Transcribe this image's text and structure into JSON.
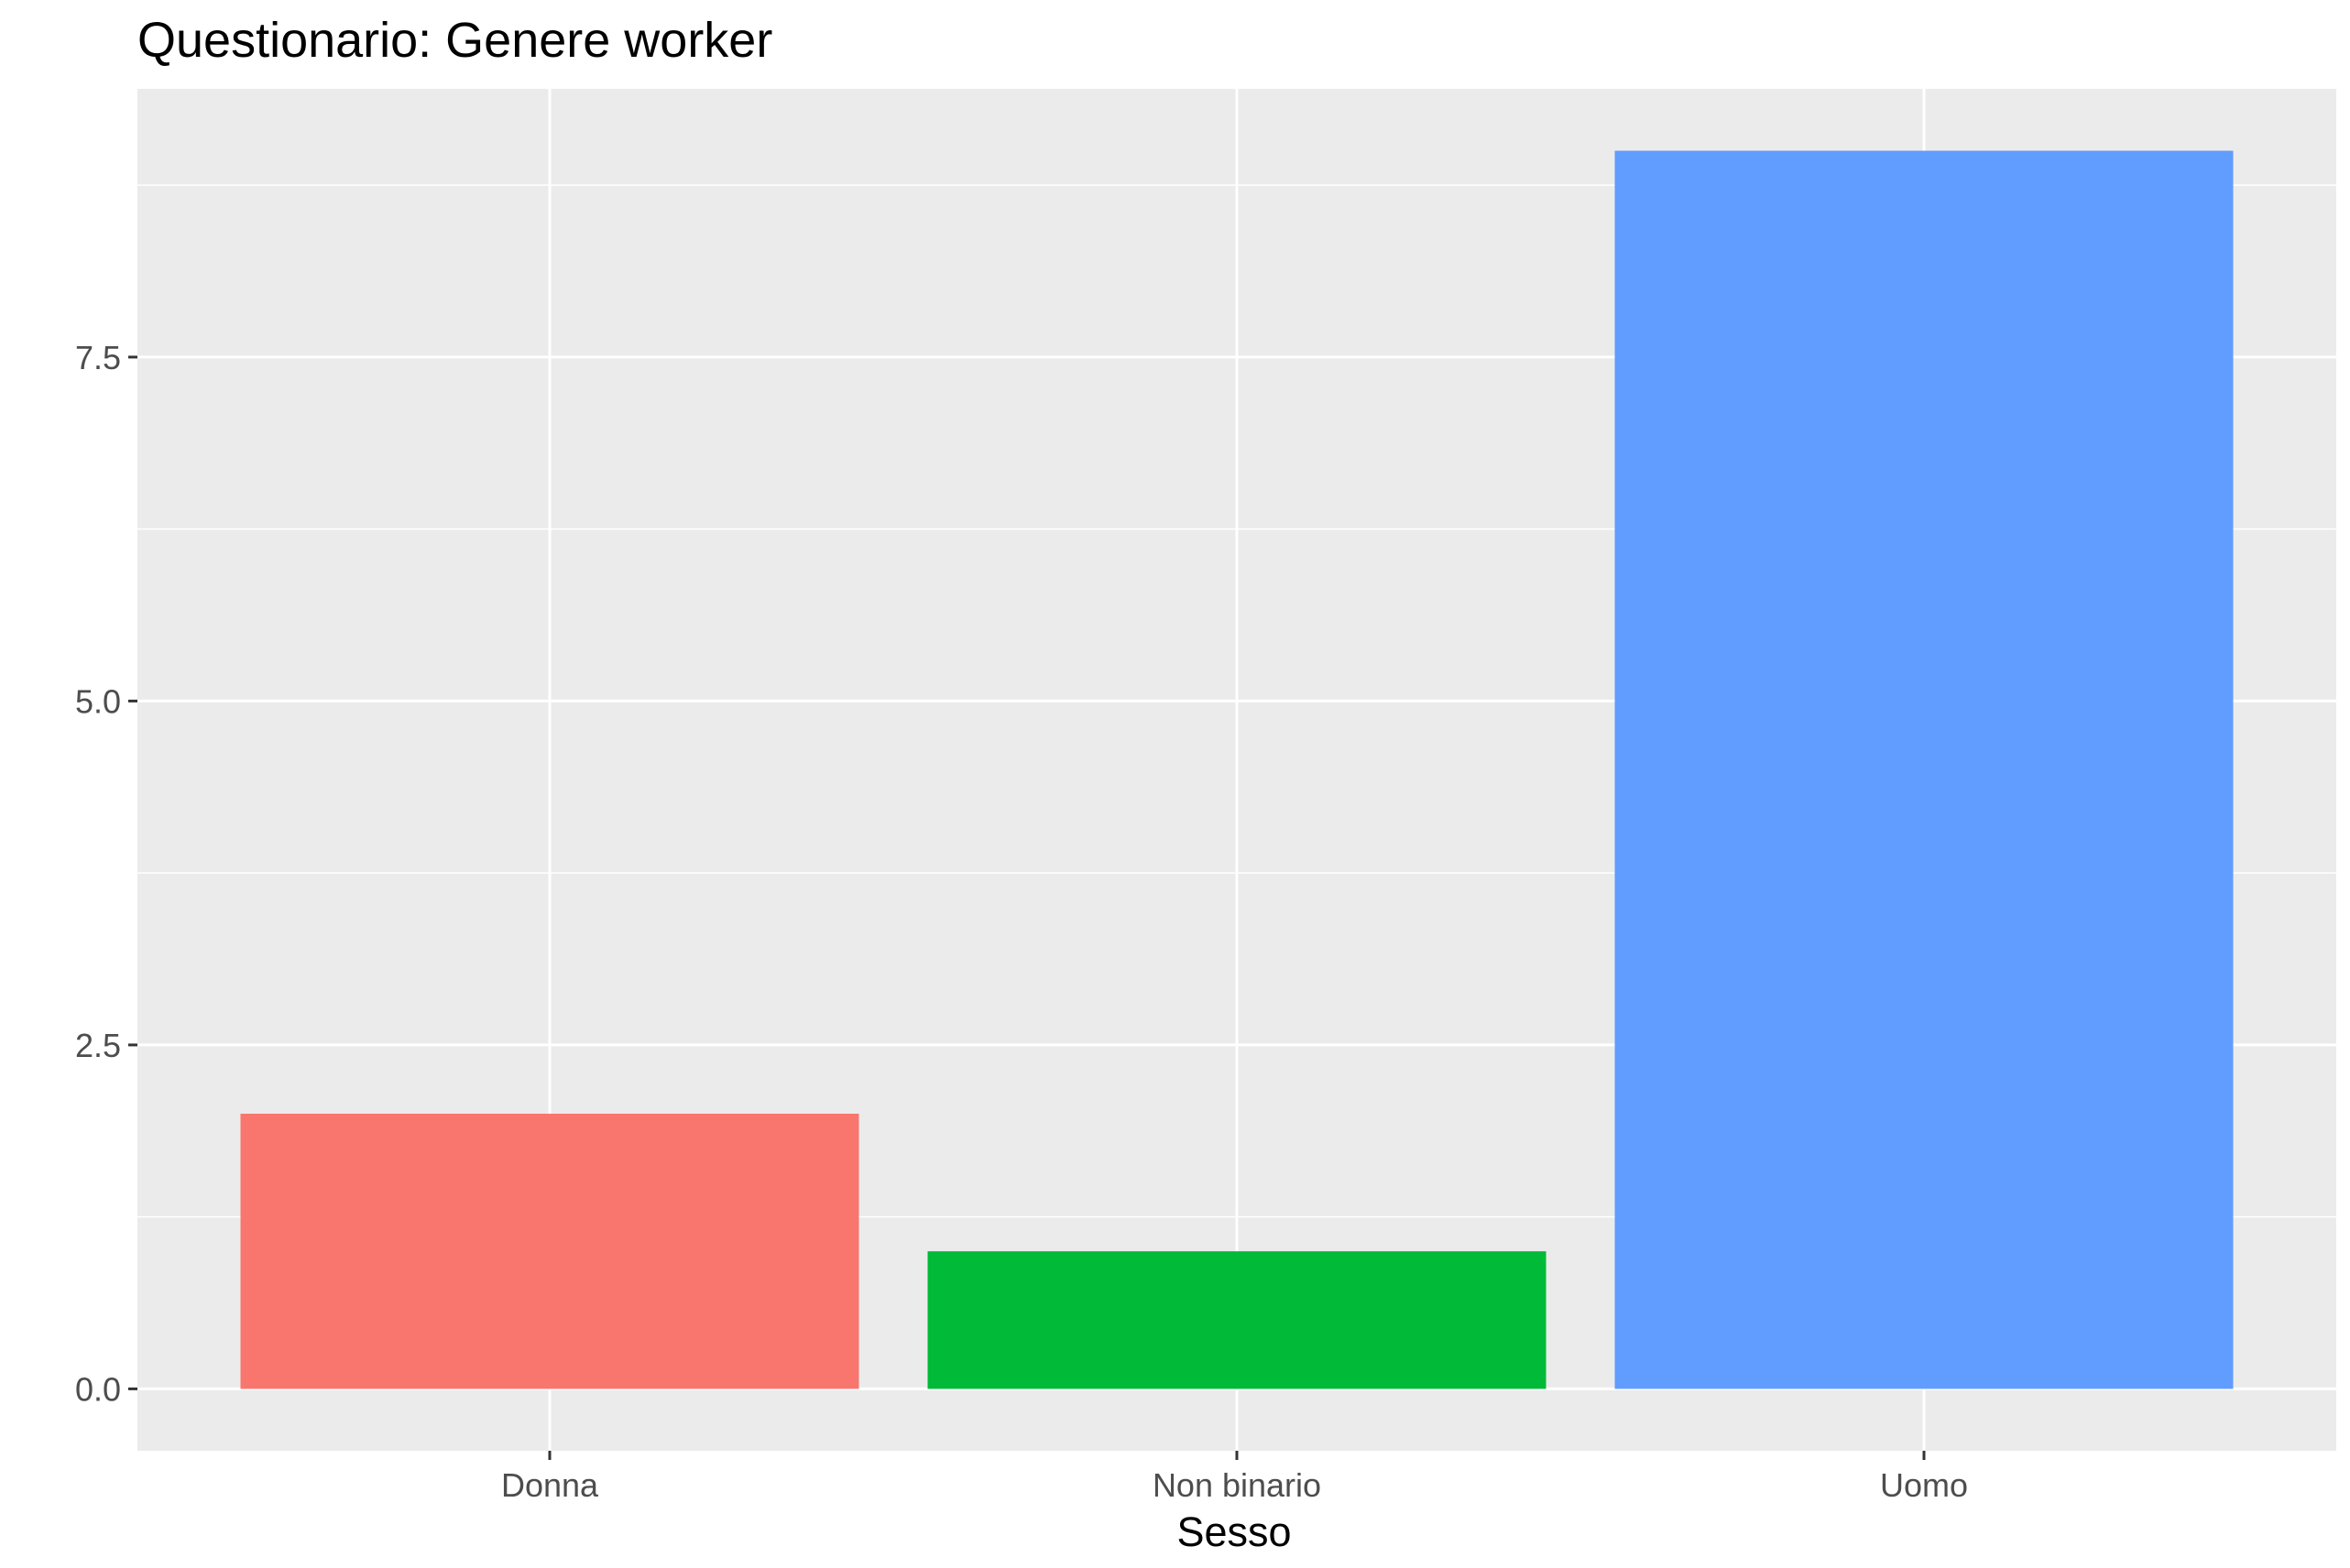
{
  "chart_data": {
    "type": "bar",
    "title": "Questionario: Genere worker",
    "xlabel": "Sesso",
    "ylabel": "",
    "categories": [
      "Donna",
      "Non binario",
      "Uomo"
    ],
    "values": [
      2,
      1,
      9
    ],
    "colors": [
      "#F8766D",
      "#00BA38",
      "#619CFF"
    ],
    "ylim": [
      -0.45,
      9.45
    ],
    "yticks": [
      0,
      2.5,
      5,
      7.5
    ],
    "ytick_labels": [
      "0.0",
      "2.5",
      "5.0",
      "7.5"
    ],
    "grid": true,
    "legend": "none",
    "panel_background": "#EBEBEB",
    "gridline_color": "#FFFFFF"
  }
}
